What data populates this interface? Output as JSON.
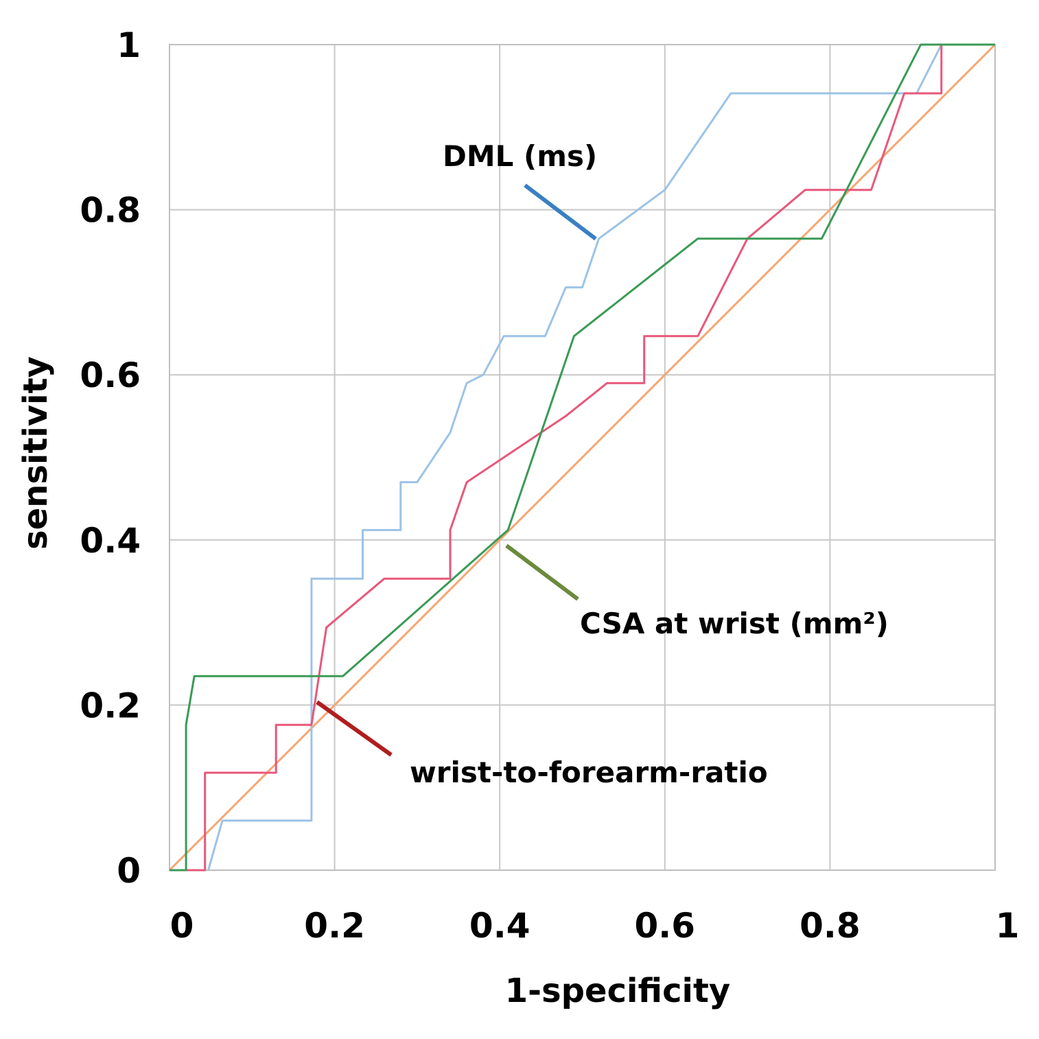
{
  "chart_data": {
    "type": "line",
    "title": "",
    "xlabel": "1-specificity",
    "ylabel": "sensitivity",
    "xlim": [
      0,
      1
    ],
    "ylim": [
      0,
      1
    ],
    "grid": true,
    "x_ticks": [
      0,
      0.2,
      0.4,
      0.6,
      0.8,
      1
    ],
    "y_ticks": [
      0,
      0.2,
      0.4,
      0.6,
      0.8,
      1
    ],
    "x_tick_labels": [
      "0",
      "0.2",
      "0.4",
      "0.6",
      "0.8",
      "1"
    ],
    "y_tick_labels": [
      "0",
      "0.2",
      "0.4",
      "0.6",
      "0.8",
      "1"
    ],
    "series": [
      {
        "name": "DML (ms)",
        "color": "#9cc3e6",
        "x": [
          0.047,
          0.064,
          0.172,
          0.172,
          0.234,
          0.234,
          0.28,
          0.28,
          0.3,
          0.34,
          0.34,
          0.36,
          0.36,
          0.38,
          0.405,
          0.405,
          0.455,
          0.48,
          0.48,
          0.5,
          0.52,
          0.6,
          0.68,
          0.905,
          0.935,
          0.935,
          1.0
        ],
        "y": [
          0.0,
          0.06,
          0.06,
          0.353,
          0.353,
          0.412,
          0.412,
          0.47,
          0.47,
          0.53,
          0.53,
          0.59,
          0.59,
          0.6,
          0.647,
          0.647,
          0.647,
          0.706,
          0.706,
          0.706,
          0.765,
          0.824,
          0.941,
          0.941,
          1.0,
          1.0,
          1.0
        ]
      },
      {
        "name": "CSA at wrist (mm²)",
        "color": "#3a9a55",
        "x": [
          0.0,
          0.02,
          0.02,
          0.03,
          0.21,
          0.41,
          0.49,
          0.64,
          0.79,
          0.91,
          1.0
        ],
        "y": [
          0.0,
          0.0,
          0.176,
          0.235,
          0.235,
          0.412,
          0.647,
          0.765,
          0.765,
          1.0,
          1.0
        ],
        "annotation": "CSA at wrist (mm²)"
      },
      {
        "name": "wrist-to-forearm-ratio",
        "color": "#e8577a",
        "x": [
          0.0,
          0.043,
          0.043,
          0.129,
          0.129,
          0.172,
          0.19,
          0.26,
          0.34,
          0.34,
          0.36,
          0.48,
          0.53,
          0.575,
          0.575,
          0.64,
          0.7,
          0.77,
          0.85,
          0.89,
          0.935,
          0.935,
          1.0
        ],
        "y": [
          0.0,
          0.0,
          0.118,
          0.118,
          0.176,
          0.176,
          0.294,
          0.353,
          0.353,
          0.412,
          0.47,
          0.55,
          0.59,
          0.59,
          0.647,
          0.647,
          0.765,
          0.824,
          0.824,
          0.941,
          0.941,
          1.0,
          1.0
        ]
      },
      {
        "name": "reference",
        "color": "#f5a673",
        "x": [
          0,
          1
        ],
        "y": [
          0,
          1
        ]
      }
    ],
    "annotations": [
      {
        "text": "DML (ms)",
        "pointer_color": "#3a7fc4"
      },
      {
        "text": "CSA at wrist (mm²)",
        "pointer_color": "#6b8a3c"
      },
      {
        "text": "wrist-to-forearm-ratio",
        "pointer_color": "#b01e1e"
      }
    ]
  }
}
